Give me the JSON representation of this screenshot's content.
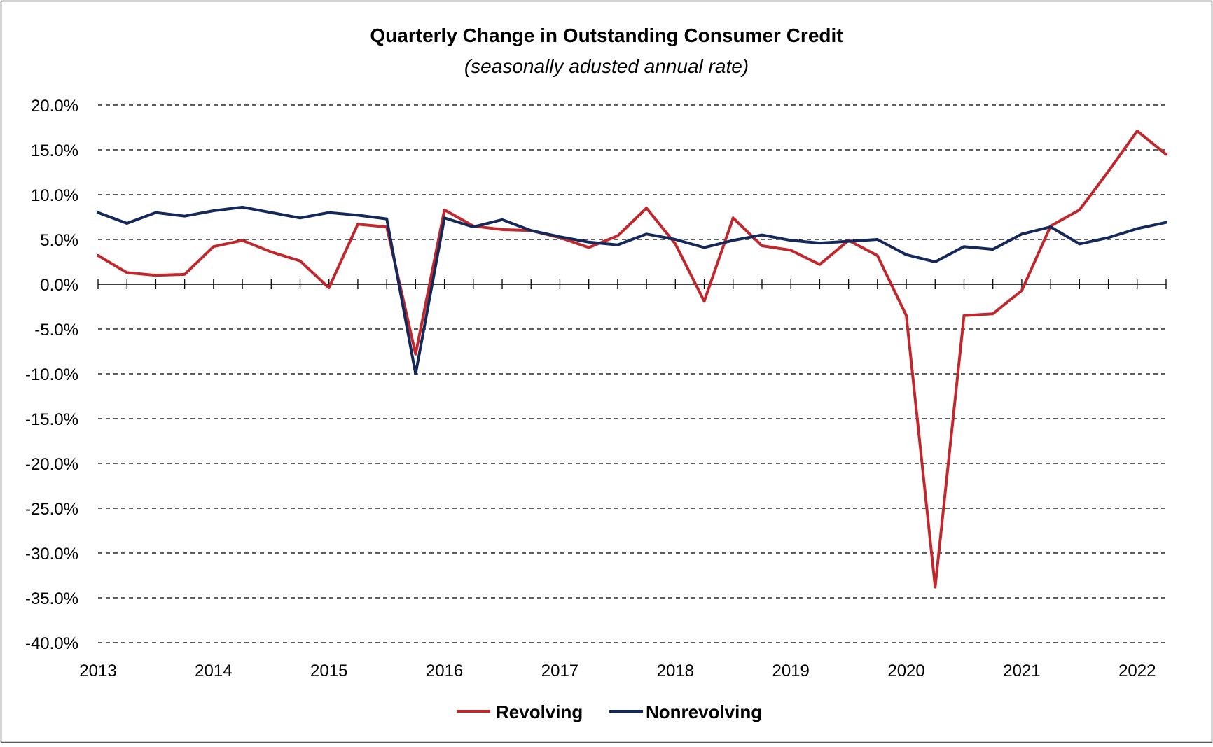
{
  "chart_data": {
    "type": "line",
    "title": "Quarterly Change in Outstanding Consumer Credit",
    "subtitle": "(seasonally adusted annual rate)",
    "xlabel": "",
    "ylabel": "",
    "ylim": [
      -40,
      20
    ],
    "y_ticks": [
      20,
      15,
      10,
      5,
      0,
      -5,
      -10,
      -15,
      -20,
      -25,
      -30,
      -35,
      -40
    ],
    "y_tick_labels": [
      "20.0%",
      "15.0%",
      "10.0%",
      "5.0%",
      "0.0%",
      "-5.0%",
      "-10.0%",
      "-15.0%",
      "-20.0%",
      "-25.0%",
      "-30.0%",
      "-35.0%",
      "-40.0%"
    ],
    "x_start": 2013.0,
    "x_step": 0.25,
    "xlim": [
      2013.0,
      2022.25
    ],
    "x_tick_labels": [
      "2013",
      "2014",
      "2015",
      "2016",
      "2017",
      "2018",
      "2019",
      "2020",
      "2021",
      "2022"
    ],
    "x_tick_values": [
      2013,
      2014,
      2015,
      2016,
      2017,
      2018,
      2019,
      2020,
      2021,
      2022
    ],
    "grid": "horizontal-dashed",
    "legend_position": "bottom-center",
    "series": [
      {
        "name": "Revolving",
        "color": "#c0282d",
        "values": [
          3.2,
          1.3,
          1.0,
          1.1,
          4.2,
          4.9,
          3.6,
          2.6,
          -0.4,
          6.7,
          6.4,
          -7.8,
          8.3,
          6.5,
          6.1,
          6.0,
          5.2,
          4.1,
          5.4,
          8.5,
          4.5,
          -1.9,
          7.4,
          4.3,
          3.8,
          2.2,
          4.9,
          3.2,
          -3.5,
          -33.8,
          -3.5,
          -3.3,
          -0.7,
          6.5,
          8.3,
          12.6,
          17.1,
          14.5
        ]
      },
      {
        "name": "Nonrevolving",
        "color": "#15285a",
        "values": [
          8.0,
          6.8,
          8.0,
          7.6,
          8.2,
          8.6,
          8.0,
          7.4,
          8.0,
          7.7,
          7.3,
          -10.0,
          7.4,
          6.4,
          7.2,
          6.0,
          5.3,
          4.7,
          4.4,
          5.6,
          5.0,
          4.1,
          4.9,
          5.5,
          4.9,
          4.6,
          4.8,
          5.0,
          3.3,
          2.5,
          4.2,
          3.9,
          5.6,
          6.4,
          4.5,
          5.2,
          6.2,
          6.9
        ]
      }
    ]
  }
}
